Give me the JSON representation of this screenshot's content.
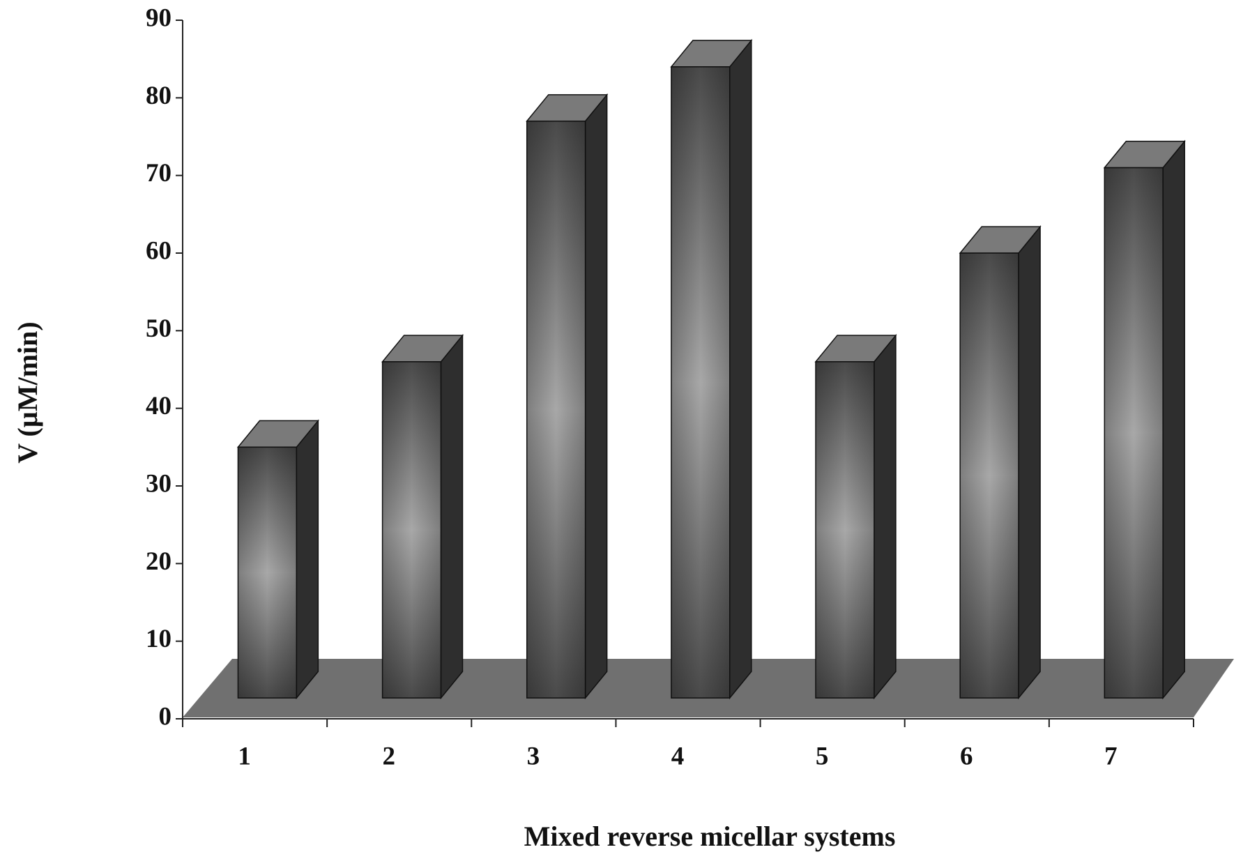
{
  "chart_data": {
    "type": "bar3d",
    "xlabel": "Mixed reverse micellar systems",
    "ylabel": "V (µM/min)",
    "categories": [
      "1",
      "2",
      "3",
      "4",
      "5",
      "6",
      "7"
    ],
    "values": [
      35,
      46,
      77,
      84,
      46,
      60,
      71
    ],
    "color": "#6e6e6e",
    "ylim": [
      0,
      90
    ],
    "yticks": [
      0,
      10,
      20,
      30,
      40,
      50,
      60,
      70,
      80,
      90
    ],
    "grid": false
  }
}
